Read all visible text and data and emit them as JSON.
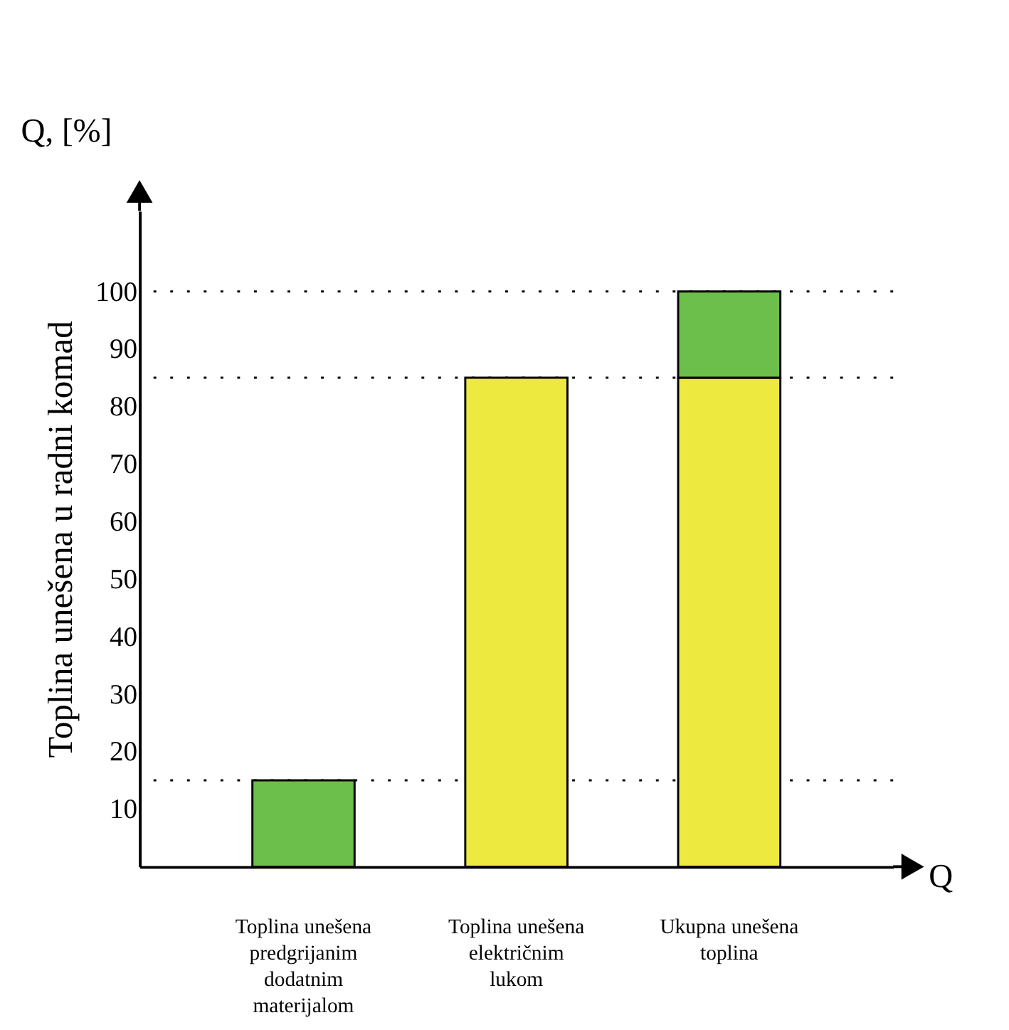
{
  "chart_data": {
    "type": "bar",
    "stacked": true,
    "xlabel": "Q",
    "ylabel": "Toplina unešena u radni komad",
    "annotations": [
      "Q, [%]"
    ],
    "categories": [
      "Toplina unešena predgrijanim dodatnim materijalom",
      "Toplina unešena električnim lukom",
      "Ukupna unešena toplina"
    ],
    "series": [
      {
        "color": "#ede93f",
        "values": [
          null,
          85,
          85
        ]
      },
      {
        "color": "#6cbf4a",
        "values": [
          15,
          null,
          15
        ]
      }
    ],
    "ylim": [
      0,
      114
    ],
    "yticks": [
      10,
      20,
      30,
      40,
      50,
      60,
      70,
      80,
      90,
      100
    ],
    "ref_lines": [
      {
        "axis": "y",
        "value": 15,
        "line_style": "dotted"
      },
      {
        "axis": "y",
        "value": 85,
        "line_style": "dotted"
      },
      {
        "axis": "y",
        "value": 100,
        "line_style": "dotted"
      }
    ],
    "grid": false,
    "legend": false
  }
}
